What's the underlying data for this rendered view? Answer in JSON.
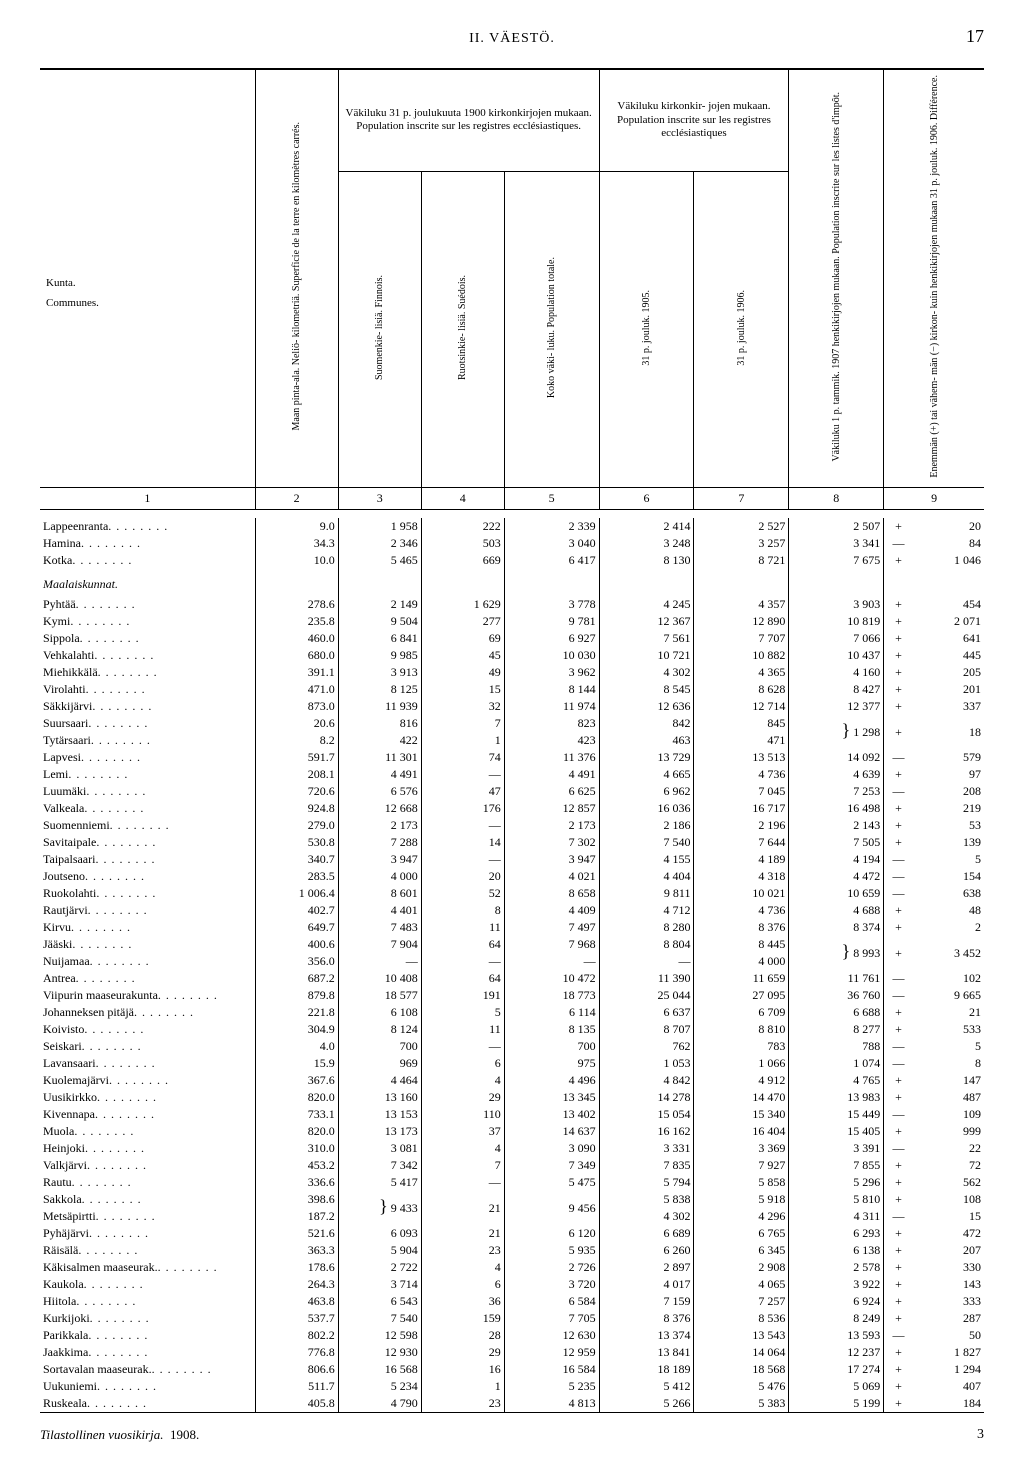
{
  "page": {
    "section_label": "II.  VÄESTÖ.",
    "number": "17"
  },
  "headers": {
    "kunta": "Kunta.",
    "communes": "Communes.",
    "area": "Maan pinta-ala. Neliö-\nkilometriä.\nSuperficie de la terre en\nkilomètres carrés.",
    "pop1900_group": "Väkiluku 31 p. joulukuuta 1900 kirkonkirjojen mukaan.\nPopulation inscrite sur les registres ecclésiastiques.",
    "finnois": "Suomenkie-\nlisiä.\nFinnois.",
    "suedois": "Ruotsinkie-\nlisiä.\nSuédois.",
    "total": "Koko väki-\nluku.\nPopulation\ntotale.",
    "eccl_group": "Väkiluku kirkonkir-\njojen mukaan.\nPopulation inscrite sur les registres\necclésiastiques",
    "y1905": "31 p. jouluk.\n1905.",
    "y1906": "31 p. jouluk.\n1906.",
    "col8": "Väkiluku 1 p. tammik.\n1907 henkikirjojen\nmukaan.\nPopulation inscrite sur\nles listes d'impôt.",
    "col9": "Enemmän (+) tai vähem-\nmän (−) kirkon- kuin\nhenkikirjojen mukaan\n31 p. jouluk. 1906.\nDifférence."
  },
  "colnums": [
    "1",
    "2",
    "3",
    "4",
    "5",
    "6",
    "7",
    "8",
    "9"
  ],
  "section_label": "Maalaiskunnat.",
  "rows_a": [
    {
      "n": "Lappeenranta",
      "a": "9.0",
      "f": "1 958",
      "s": "222",
      "t": "2 339",
      "y5": "2 414",
      "y6": "2 527",
      "c8": "2 507",
      "sg": "+",
      "d": "20"
    },
    {
      "n": "Hamina",
      "a": "34.3",
      "f": "2 346",
      "s": "503",
      "t": "3 040",
      "y5": "3 248",
      "y6": "3 257",
      "c8": "3 341",
      "sg": "—",
      "d": "84"
    },
    {
      "n": "Kotka",
      "a": "10.0",
      "f": "5 465",
      "s": "669",
      "t": "6 417",
      "y5": "8 130",
      "y6": "8 721",
      "c8": "7 675",
      "sg": "+",
      "d": "1 046"
    }
  ],
  "rows_b": [
    {
      "n": "Pyhtää",
      "a": "278.6",
      "f": "2 149",
      "s": "1 629",
      "t": "3 778",
      "y5": "4 245",
      "y6": "4 357",
      "c8": "3 903",
      "sg": "+",
      "d": "454"
    },
    {
      "n": "Kymi",
      "a": "235.8",
      "f": "9 504",
      "s": "277",
      "t": "9 781",
      "y5": "12 367",
      "y6": "12 890",
      "c8": "10 819",
      "sg": "+",
      "d": "2 071"
    },
    {
      "n": "Sippola",
      "a": "460.0",
      "f": "6 841",
      "s": "69",
      "t": "6 927",
      "y5": "7 561",
      "y6": "7 707",
      "c8": "7 066",
      "sg": "+",
      "d": "641"
    },
    {
      "n": "Vehkalahti",
      "a": "680.0",
      "f": "9 985",
      "s": "45",
      "t": "10 030",
      "y5": "10 721",
      "y6": "10 882",
      "c8": "10 437",
      "sg": "+",
      "d": "445"
    },
    {
      "n": "Miehikkälä",
      "a": "391.1",
      "f": "3 913",
      "s": "49",
      "t": "3 962",
      "y5": "4 302",
      "y6": "4 365",
      "c8": "4 160",
      "sg": "+",
      "d": "205"
    },
    {
      "n": "Virolahti",
      "a": "471.0",
      "f": "8 125",
      "s": "15",
      "t": "8 144",
      "y5": "8 545",
      "y6": "8 628",
      "c8": "8 427",
      "sg": "+",
      "d": "201"
    },
    {
      "n": "Säkkijärvi",
      "a": "873.0",
      "f": "11 939",
      "s": "32",
      "t": "11 974",
      "y5": "12 636",
      "y6": "12 714",
      "c8": "12 377",
      "sg": "+",
      "d": "337"
    },
    {
      "n": "Suursaari",
      "a": "20.6",
      "f": "816",
      "s": "7",
      "t": "823",
      "y5": "842",
      "y6": "845",
      "c8": "",
      "sg": "",
      "d": "",
      "brTop": true,
      "merge8": "1 298",
      "mergeSg": "+",
      "mergeD": "18"
    },
    {
      "n": "Tytärsaari",
      "a": "8.2",
      "f": "422",
      "s": "1",
      "t": "423",
      "y5": "463",
      "y6": "471",
      "c8": "",
      "sg": "",
      "d": "",
      "brBot": true
    },
    {
      "n": "Lapvesi",
      "a": "591.7",
      "f": "11 301",
      "s": "74",
      "t": "11 376",
      "y5": "13 729",
      "y6": "13 513",
      "c8": "14 092",
      "sg": "—",
      "d": "579"
    },
    {
      "n": "Lemi",
      "a": "208.1",
      "f": "4 491",
      "s": "—",
      "t": "4 491",
      "y5": "4 665",
      "y6": "4 736",
      "c8": "4 639",
      "sg": "+",
      "d": "97"
    },
    {
      "n": "Luumäki",
      "a": "720.6",
      "f": "6 576",
      "s": "47",
      "t": "6 625",
      "y5": "6 962",
      "y6": "7 045",
      "c8": "7 253",
      "sg": "—",
      "d": "208"
    },
    {
      "n": "Valkeala",
      "a": "924.8",
      "f": "12 668",
      "s": "176",
      "t": "12 857",
      "y5": "16 036",
      "y6": "16 717",
      "c8": "16 498",
      "sg": "+",
      "d": "219"
    },
    {
      "n": "Suomenniemi",
      "a": "279.0",
      "f": "2 173",
      "s": "—",
      "t": "2 173",
      "y5": "2 186",
      "y6": "2 196",
      "c8": "2 143",
      "sg": "+",
      "d": "53"
    },
    {
      "n": "Savitaipale",
      "a": "530.8",
      "f": "7 288",
      "s": "14",
      "t": "7 302",
      "y5": "7 540",
      "y6": "7 644",
      "c8": "7 505",
      "sg": "+",
      "d": "139"
    },
    {
      "n": "Taipalsaari",
      "a": "340.7",
      "f": "3 947",
      "s": "—",
      "t": "3 947",
      "y5": "4 155",
      "y6": "4 189",
      "c8": "4 194",
      "sg": "—",
      "d": "5"
    },
    {
      "n": "Joutseno",
      "a": "283.5",
      "f": "4 000",
      "s": "20",
      "t": "4 021",
      "y5": "4 404",
      "y6": "4 318",
      "c8": "4 472",
      "sg": "—",
      "d": "154"
    },
    {
      "n": "Ruokolahti",
      "a": "1 006.4",
      "f": "8 601",
      "s": "52",
      "t": "8 658",
      "y5": "9 811",
      "y6": "10 021",
      "c8": "10 659",
      "sg": "—",
      "d": "638"
    },
    {
      "n": "Rautjärvi",
      "a": "402.7",
      "f": "4 401",
      "s": "8",
      "t": "4 409",
      "y5": "4 712",
      "y6": "4 736",
      "c8": "4 688",
      "sg": "+",
      "d": "48"
    },
    {
      "n": "Kirvu",
      "a": "649.7",
      "f": "7 483",
      "s": "11",
      "t": "7 497",
      "y5": "8 280",
      "y6": "8 376",
      "c8": "8 374",
      "sg": "+",
      "d": "2"
    },
    {
      "n": "Jääski",
      "a": "400.6",
      "f": "7 904",
      "s": "64",
      "t": "7 968",
      "y5": "8 804",
      "y6": "8 445",
      "c8": "",
      "sg": "",
      "d": "",
      "brTop": true,
      "merge8": "8 993",
      "mergeSg": "+",
      "mergeD": "3 452"
    },
    {
      "n": "Nuijamaa",
      "a": "356.0",
      "f": "—",
      "s": "—",
      "t": "—",
      "y5": "—",
      "y6": "4 000",
      "c8": "",
      "sg": "",
      "d": "",
      "brBot": true
    },
    {
      "n": "Antrea",
      "a": "687.2",
      "f": "10 408",
      "s": "64",
      "t": "10 472",
      "y5": "11 390",
      "y6": "11 659",
      "c8": "11 761",
      "sg": "—",
      "d": "102"
    },
    {
      "n": "Viipurin maaseurakunta",
      "a": "879.8",
      "f": "18 577",
      "s": "191",
      "t": "18 773",
      "y5": "25 044",
      "y6": "27 095",
      "c8": "36 760",
      "sg": "—",
      "d": "9 665"
    },
    {
      "n": "Johanneksen pitäjä",
      "a": "221.8",
      "f": "6 108",
      "s": "5",
      "t": "6 114",
      "y5": "6 637",
      "y6": "6 709",
      "c8": "6 688",
      "sg": "+",
      "d": "21"
    },
    {
      "n": "Koivisto",
      "a": "304.9",
      "f": "8 124",
      "s": "11",
      "t": "8 135",
      "y5": "8 707",
      "y6": "8 810",
      "c8": "8 277",
      "sg": "+",
      "d": "533"
    },
    {
      "n": "Seiskari",
      "a": "4.0",
      "f": "700",
      "s": "—",
      "t": "700",
      "y5": "762",
      "y6": "783",
      "c8": "788",
      "sg": "—",
      "d": "5"
    },
    {
      "n": "Lavansaari",
      "a": "15.9",
      "f": "969",
      "s": "6",
      "t": "975",
      "y5": "1 053",
      "y6": "1 066",
      "c8": "1 074",
      "sg": "—",
      "d": "8"
    },
    {
      "n": "Kuolemajärvi",
      "a": "367.6",
      "f": "4 464",
      "s": "4",
      "t": "4 496",
      "y5": "4 842",
      "y6": "4 912",
      "c8": "4 765",
      "sg": "+",
      "d": "147"
    },
    {
      "n": "Uusikirkko",
      "a": "820.0",
      "f": "13 160",
      "s": "29",
      "t": "13 345",
      "y5": "14 278",
      "y6": "14 470",
      "c8": "13 983",
      "sg": "+",
      "d": "487"
    },
    {
      "n": "Kivennapa",
      "a": "733.1",
      "f": "13 153",
      "s": "110",
      "t": "13 402",
      "y5": "15 054",
      "y6": "15 340",
      "c8": "15 449",
      "sg": "—",
      "d": "109"
    },
    {
      "n": "Muola",
      "a": "820.0",
      "f": "13 173",
      "s": "37",
      "t": "14 637",
      "y5": "16 162",
      "y6": "16 404",
      "c8": "15 405",
      "sg": "+",
      "d": "999"
    },
    {
      "n": "Heinjoki",
      "a": "310.0",
      "f": "3 081",
      "s": "4",
      "t": "3 090",
      "y5": "3 331",
      "y6": "3 369",
      "c8": "3 391",
      "sg": "—",
      "d": "22"
    },
    {
      "n": "Valkjärvi",
      "a": "453.2",
      "f": "7 342",
      "s": "7",
      "t": "7 349",
      "y5": "7 835",
      "y6": "7 927",
      "c8": "7 855",
      "sg": "+",
      "d": "72"
    },
    {
      "n": "Rautu",
      "a": "336.6",
      "f": "5 417",
      "s": "—",
      "t": "5 475",
      "y5": "5 794",
      "y6": "5 858",
      "c8": "5 296",
      "sg": "+",
      "d": "562"
    },
    {
      "n": "Sakkola",
      "a": "398.6",
      "f": "",
      "s": "",
      "t": "",
      "y5": "5 838",
      "y6": "5 918",
      "c8": "5 810",
      "sg": "+",
      "d": "108",
      "brTop": true,
      "mergeF": "9 433",
      "mergeS": "21",
      "mergeT": "9 456"
    },
    {
      "n": "Metsäpirtti",
      "a": "187.2",
      "f": "",
      "s": "",
      "t": "",
      "y5": "4 302",
      "y6": "4 296",
      "c8": "4 311",
      "sg": "—",
      "d": "15",
      "brBot": true
    },
    {
      "n": "Pyhäjärvi",
      "a": "521.6",
      "f": "6 093",
      "s": "21",
      "t": "6 120",
      "y5": "6 689",
      "y6": "6 765",
      "c8": "6 293",
      "sg": "+",
      "d": "472"
    },
    {
      "n": "Räisälä",
      "a": "363.3",
      "f": "5 904",
      "s": "23",
      "t": "5 935",
      "y5": "6 260",
      "y6": "6 345",
      "c8": "6 138",
      "sg": "+",
      "d": "207"
    },
    {
      "n": "Käkisalmen maaseurak.",
      "a": "178.6",
      "f": "2 722",
      "s": "4",
      "t": "2 726",
      "y5": "2 897",
      "y6": "2 908",
      "c8": "2 578",
      "sg": "+",
      "d": "330"
    },
    {
      "n": "Kaukola",
      "a": "264.3",
      "f": "3 714",
      "s": "6",
      "t": "3 720",
      "y5": "4 017",
      "y6": "4 065",
      "c8": "3 922",
      "sg": "+",
      "d": "143"
    },
    {
      "n": "Hiitola",
      "a": "463.8",
      "f": "6 543",
      "s": "36",
      "t": "6 584",
      "y5": "7 159",
      "y6": "7 257",
      "c8": "6 924",
      "sg": "+",
      "d": "333"
    },
    {
      "n": "Kurkijoki",
      "a": "537.7",
      "f": "7 540",
      "s": "159",
      "t": "7 705",
      "y5": "8 376",
      "y6": "8 536",
      "c8": "8 249",
      "sg": "+",
      "d": "287"
    },
    {
      "n": "Parikkala",
      "a": "802.2",
      "f": "12 598",
      "s": "28",
      "t": "12 630",
      "y5": "13 374",
      "y6": "13 543",
      "c8": "13 593",
      "sg": "—",
      "d": "50"
    },
    {
      "n": "Jaakkima",
      "a": "776.8",
      "f": "12 930",
      "s": "29",
      "t": "12 959",
      "y5": "13 841",
      "y6": "14 064",
      "c8": "12 237",
      "sg": "+",
      "d": "1 827"
    },
    {
      "n": "Sortavalan maaseurak.",
      "a": "806.6",
      "f": "16 568",
      "s": "16",
      "t": "16 584",
      "y5": "18 189",
      "y6": "18 568",
      "c8": "17 274",
      "sg": "+",
      "d": "1 294"
    },
    {
      "n": "Uukuniemi",
      "a": "511.7",
      "f": "5 234",
      "s": "1",
      "t": "5 235",
      "y5": "5 412",
      "y6": "5 476",
      "c8": "5 069",
      "sg": "+",
      "d": "407"
    },
    {
      "n": "Ruskeala",
      "a": "405.8",
      "f": "4 790",
      "s": "23",
      "t": "4 813",
      "y5": "5 266",
      "y6": "5 383",
      "c8": "5 199",
      "sg": "+",
      "d": "184"
    }
  ],
  "footer": {
    "title": "Tilastollinen vuosikirja.",
    "year": "1908.",
    "sig": "3"
  }
}
